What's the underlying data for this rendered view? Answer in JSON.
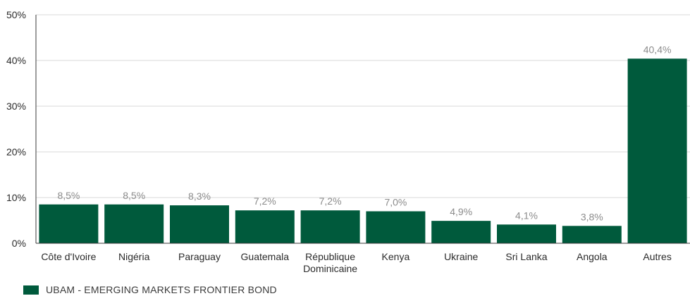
{
  "chart_data": {
    "type": "bar",
    "categories": [
      "Côte d'Ivoire",
      "Nigéria",
      "Paraguay",
      "Guatemala",
      "République\nDominicaine",
      "Kenya",
      "Ukraine",
      "Sri Lanka",
      "Angola",
      "Autres"
    ],
    "series": [
      {
        "name": "UBAM - EMERGING MARKETS FRONTIER BOND",
        "values": [
          8.5,
          8.5,
          8.3,
          7.2,
          7.2,
          7.0,
          4.9,
          4.1,
          3.8,
          40.4
        ],
        "labels": [
          "8,5%",
          "8,5%",
          "8,3%",
          "7,2%",
          "7,2%",
          "7,0%",
          "4,9%",
          "4,1%",
          "3,8%",
          "40,4%"
        ]
      }
    ],
    "ylim": [
      0,
      50
    ],
    "yticks": [
      0,
      10,
      20,
      30,
      40,
      50
    ],
    "ytick_labels": [
      "0%",
      "10%",
      "20%",
      "30%",
      "40%",
      "50%"
    ],
    "grid": true,
    "legend_position": "bottom-left",
    "colors": {
      "bar": "#005a3c",
      "grid": "#d9d9d9",
      "axis": "#3b3b3b",
      "value_label": "#8c8c8c",
      "tick_label": "#2b2b2b"
    }
  },
  "legend": {
    "label": "UBAM - EMERGING MARKETS FRONTIER BOND"
  }
}
